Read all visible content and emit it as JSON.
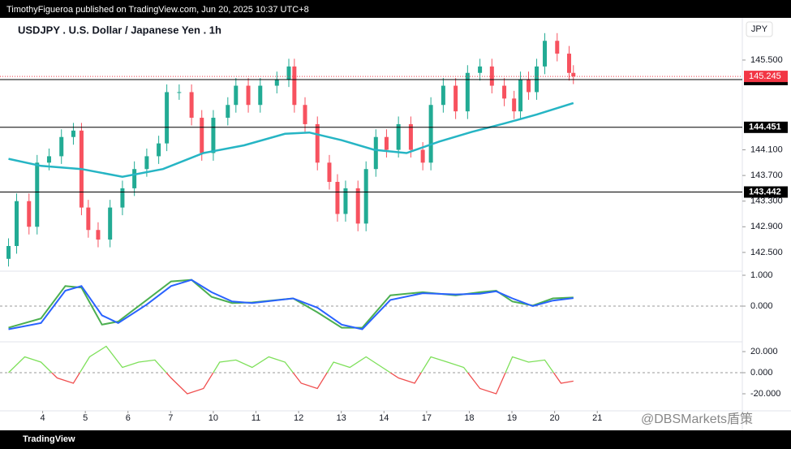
{
  "header": "TimothyFigueroa published on TradingView.com, Jun 20, 2025 10:37 UTC+8",
  "footer": "TradingView",
  "watermark": "@DBSMarkets盾策",
  "chart_data": [
    {
      "type": "candlestick",
      "title": "USDJPY . U.S. Dollar / Japanese Yen . 1h",
      "currency": "JPY",
      "up_color": "#22ab94",
      "down_color": "#f7525f",
      "xlim": [
        -1,
        16.4
      ],
      "xticks": [
        {
          "value": 0,
          "label": "4"
        },
        {
          "value": 1,
          "label": "5"
        },
        {
          "value": 2,
          "label": "6"
        },
        {
          "value": 3,
          "label": "7"
        },
        {
          "value": 4,
          "label": "10"
        },
        {
          "value": 5,
          "label": "11"
        },
        {
          "value": 6,
          "label": "12"
        },
        {
          "value": 7,
          "label": "13"
        },
        {
          "value": 8,
          "label": "14"
        },
        {
          "value": 9,
          "label": "17"
        },
        {
          "value": 10,
          "label": "18"
        },
        {
          "value": 11,
          "label": "19"
        },
        {
          "value": 12,
          "label": "20"
        },
        {
          "value": 13,
          "label": "21"
        }
      ],
      "ylim": [
        142.22,
        146.12
      ],
      "yticks": [
        {
          "value": 145.5,
          "label": "145.500"
        },
        {
          "value": 144.1,
          "label": "144.100"
        },
        {
          "value": 143.7,
          "label": "143.700"
        },
        {
          "value": 143.3,
          "label": "143.300"
        },
        {
          "value": 142.9,
          "label": "142.900"
        },
        {
          "value": 142.5,
          "label": "142.500"
        }
      ],
      "x": [
        -0.8,
        -0.61,
        -0.32,
        -0.13,
        0.15,
        0.44,
        0.72,
        0.91,
        1.07,
        1.3,
        1.58,
        1.87,
        2.15,
        2.44,
        2.72,
        2.91,
        3.2,
        3.49,
        3.73,
        4.0,
        4.34,
        4.53,
        4.82,
        5.1,
        5.49,
        5.77,
        5.9,
        6.15,
        6.44,
        6.72,
        6.91,
        7.1,
        7.39,
        7.58,
        7.81,
        8.06,
        8.34,
        8.63,
        8.91,
        9.1,
        9.39,
        9.68,
        9.96,
        10.25,
        10.53,
        10.82,
        11.05,
        11.2,
        11.39,
        11.58,
        11.77,
        12.06,
        12.34,
        12.44
      ],
      "open": [
        142.4,
        142.6,
        143.3,
        142.9,
        143.9,
        144.0,
        144.3,
        144.4,
        143.2,
        142.85,
        142.7,
        143.2,
        143.5,
        143.8,
        144.0,
        144.2,
        145.0,
        145.0,
        144.6,
        144.05,
        144.6,
        144.8,
        145.1,
        144.8,
        145.1,
        145.2,
        145.4,
        144.8,
        144.5,
        143.9,
        143.6,
        143.1,
        143.5,
        142.95,
        143.8,
        144.3,
        144.1,
        144.5,
        144.1,
        143.9,
        144.8,
        145.1,
        144.7,
        145.3,
        145.4,
        145.1,
        144.9,
        144.7,
        145.2,
        145.0,
        145.4,
        145.8,
        145.6,
        145.3
      ],
      "high": [
        142.72,
        143.42,
        143.42,
        144.02,
        144.12,
        144.42,
        144.52,
        144.52,
        143.32,
        142.97,
        143.32,
        143.62,
        143.92,
        144.12,
        144.32,
        145.12,
        145.12,
        145.12,
        144.72,
        144.72,
        144.92,
        145.22,
        145.22,
        145.22,
        145.32,
        145.52,
        145.52,
        144.92,
        144.62,
        144.02,
        143.72,
        143.62,
        143.62,
        143.92,
        144.42,
        144.42,
        144.62,
        144.62,
        144.22,
        144.92,
        145.22,
        145.22,
        145.42,
        145.52,
        145.52,
        145.22,
        145.02,
        145.32,
        145.32,
        145.52,
        145.92,
        145.92,
        145.72,
        145.42
      ],
      "low": [
        142.28,
        142.48,
        142.78,
        142.78,
        143.78,
        143.88,
        144.18,
        143.08,
        142.73,
        142.58,
        142.58,
        143.08,
        143.38,
        143.68,
        143.88,
        144.08,
        144.88,
        144.48,
        143.93,
        143.93,
        144.48,
        144.68,
        144.68,
        144.68,
        144.98,
        145.08,
        144.68,
        144.38,
        143.78,
        143.48,
        142.98,
        142.98,
        142.83,
        142.83,
        143.68,
        143.98,
        143.98,
        143.98,
        143.78,
        143.78,
        144.68,
        144.58,
        144.58,
        145.18,
        144.98,
        144.78,
        144.58,
        144.58,
        144.88,
        144.88,
        145.28,
        145.48,
        145.18,
        145.125
      ],
      "close": [
        142.6,
        143.3,
        142.9,
        143.9,
        144.0,
        144.3,
        144.4,
        143.2,
        142.85,
        142.7,
        143.2,
        143.5,
        143.8,
        144.0,
        144.2,
        145.0,
        145.0,
        144.6,
        144.05,
        144.6,
        144.8,
        145.1,
        144.8,
        145.1,
        145.2,
        145.4,
        144.8,
        144.5,
        143.9,
        143.6,
        143.1,
        143.5,
        142.95,
        143.8,
        144.3,
        144.1,
        144.5,
        144.1,
        143.9,
        144.8,
        145.1,
        144.7,
        145.3,
        145.4,
        145.1,
        144.9,
        144.7,
        145.2,
        145.0,
        145.4,
        145.8,
        145.6,
        145.3,
        145.245
      ],
      "ma": {
        "color": "#26b5c4",
        "x": [
          -0.8,
          -0.04,
          0.91,
          1.87,
          2.82,
          3.77,
          4.72,
          5.68,
          6.25,
          7.01,
          7.77,
          8.53,
          9.3,
          10.06,
          10.82,
          11.58,
          12.44
        ],
        "values": [
          143.96,
          143.85,
          143.8,
          143.68,
          143.8,
          144.05,
          144.17,
          144.35,
          144.37,
          144.25,
          144.1,
          144.05,
          144.23,
          144.38,
          144.51,
          144.65,
          144.83
        ]
      },
      "levels": [
        145.196,
        144.451,
        143.442
      ],
      "last_price": 145.245
    },
    {
      "type": "line",
      "xlim": [
        -1,
        16.4
      ],
      "ylim": [
        -1.13,
        1.105
      ],
      "yticks": [
        {
          "value": 1,
          "label": "1.000"
        },
        {
          "value": 0,
          "label": "0.000"
        }
      ],
      "x": [
        -0.8,
        -0.04,
        0.53,
        0.91,
        1.39,
        1.77,
        2.44,
        3.01,
        3.49,
        3.96,
        4.44,
        4.91,
        5.87,
        6.44,
        7.01,
        7.49,
        8.15,
        8.91,
        9.68,
        10.25,
        10.63,
        11.01,
        11.49,
        11.96,
        12.44
      ],
      "series": [
        {
          "color": "#4caf50",
          "values": [
            -0.7,
            -0.4,
            0.65,
            0.6,
            -0.6,
            -0.5,
            0.2,
            0.8,
            0.85,
            0.3,
            0.1,
            0.12,
            0.25,
            -0.2,
            -0.7,
            -0.7,
            0.35,
            0.45,
            0.35,
            0.45,
            0.5,
            0.15,
            0.02,
            0.25,
            0.28
          ]
        },
        {
          "color": "#2962ff",
          "values": [
            -0.75,
            -0.55,
            0.5,
            0.65,
            -0.3,
            -0.55,
            0.05,
            0.65,
            0.85,
            0.45,
            0.15,
            0.1,
            0.25,
            -0.05,
            -0.6,
            -0.75,
            0.2,
            0.42,
            0.38,
            0.4,
            0.48,
            0.25,
            0.0,
            0.18,
            0.26
          ]
        }
      ]
    },
    {
      "type": "signed-line",
      "xlim": [
        -1,
        16.4
      ],
      "ylim": [
        -35.4,
        28.5
      ],
      "yticks": [
        {
          "value": 20,
          "label": "20.000"
        },
        {
          "value": 0,
          "label": "0.000"
        },
        {
          "value": -20,
          "label": "-20.000"
        }
      ],
      "x": [
        -0.8,
        -0.42,
        -0.04,
        0.34,
        0.72,
        1.1,
        1.49,
        1.87,
        2.25,
        2.63,
        3.01,
        3.39,
        3.77,
        4.15,
        4.53,
        4.91,
        5.3,
        5.68,
        6.06,
        6.44,
        6.82,
        7.2,
        7.58,
        7.96,
        8.34,
        8.72,
        9.1,
        9.49,
        9.87,
        10.25,
        10.63,
        11.01,
        11.39,
        11.77,
        12.15,
        12.44
      ],
      "color": "#7ee05a",
      "negative_color": "#f05050",
      "values": [
        0,
        15,
        10,
        -5,
        -10,
        15,
        25,
        5,
        10,
        12,
        -5,
        -20,
        -15,
        10,
        12,
        5,
        15,
        10,
        -10,
        -15,
        10,
        5,
        15,
        5,
        -5,
        -10,
        15,
        10,
        5,
        -15,
        -20,
        15,
        10,
        12,
        -10,
        -8
      ]
    }
  ]
}
